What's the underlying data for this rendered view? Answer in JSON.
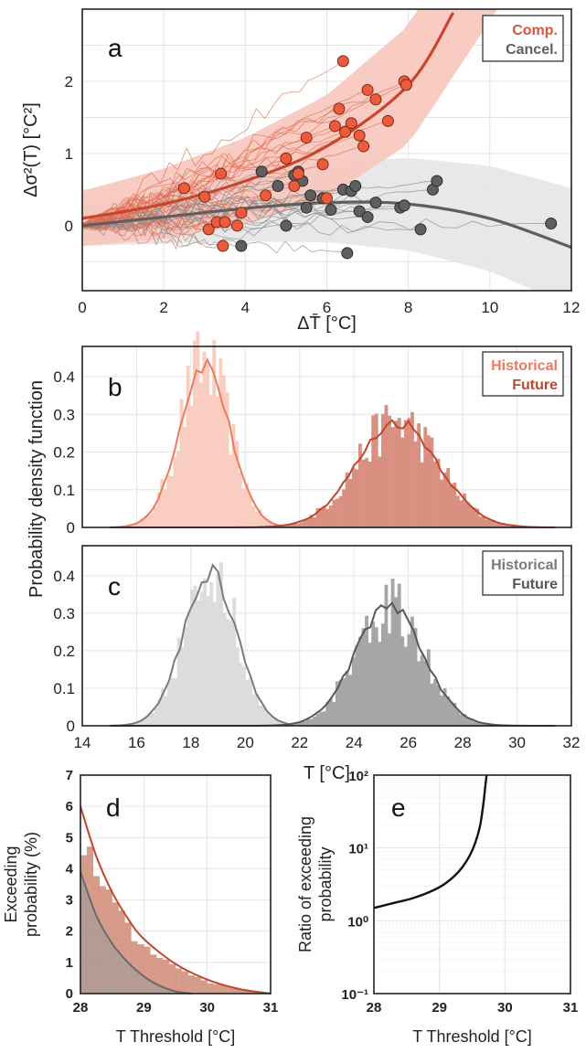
{
  "chart_data": [
    {
      "id": "a",
      "type": "scatter",
      "panel_label": "a",
      "xlabel": "ΔT̄ [°C]",
      "ylabel": "Δσ²(T) [°C²]",
      "xlim": [
        0,
        12
      ],
      "ylim": [
        -0.9,
        3.0
      ],
      "xticks": [
        "0",
        "2",
        "4",
        "6",
        "8",
        "10",
        "12"
      ],
      "yticks": [
        "0",
        "1",
        "2"
      ],
      "grid": true,
      "legend": {
        "position": "top-right",
        "entries": [
          "Comp.",
          "Cancel."
        ]
      },
      "colors": {
        "comp": "#d9553a",
        "comp_band": "#f7c6bb",
        "cancel": "#5f5f5f",
        "cancel_band": "#e6e6e6"
      },
      "series": [
        {
          "name": "Comp.",
          "fit": {
            "x": [
              0,
              2,
              4,
              6,
              8,
              9.1
            ],
            "y": [
              0.1,
              0.3,
              0.62,
              1.1,
              1.95,
              2.95
            ]
          },
          "points": [
            [
              2.5,
              0.52
            ],
            [
              3.0,
              0.4
            ],
            [
              3.1,
              -0.05
            ],
            [
              3.3,
              0.05
            ],
            [
              3.4,
              0.72
            ],
            [
              3.5,
              0.05
            ],
            [
              3.8,
              0.0
            ],
            [
              3.9,
              0.18
            ],
            [
              4.5,
              0.42
            ],
            [
              5.0,
              0.93
            ],
            [
              5.2,
              0.55
            ],
            [
              5.3,
              0.72
            ],
            [
              5.5,
              1.22
            ],
            [
              5.9,
              0.85
            ],
            [
              6.0,
              0.38
            ],
            [
              6.2,
              1.38
            ],
            [
              6.3,
              1.62
            ],
            [
              6.4,
              2.28
            ],
            [
              6.45,
              1.3
            ],
            [
              6.6,
              1.42
            ],
            [
              6.8,
              1.25
            ],
            [
              6.9,
              1.1
            ],
            [
              7.0,
              1.88
            ],
            [
              7.2,
              1.75
            ],
            [
              7.5,
              1.45
            ],
            [
              7.9,
              2.0
            ],
            [
              7.95,
              1.95
            ],
            [
              3.45,
              -0.28
            ]
          ]
        },
        {
          "name": "Cancel.",
          "fit": {
            "x": [
              0,
              2,
              4,
              6,
              8,
              10,
              12
            ],
            "y": [
              0.0,
              0.12,
              0.24,
              0.32,
              0.3,
              0.1,
              -0.3
            ]
          },
          "points": [
            [
              3.9,
              -0.28
            ],
            [
              4.4,
              0.75
            ],
            [
              4.8,
              0.55
            ],
            [
              5.0,
              0.0
            ],
            [
              5.2,
              0.7
            ],
            [
              5.3,
              0.75
            ],
            [
              5.4,
              0.62
            ],
            [
              5.5,
              0.25
            ],
            [
              5.6,
              0.42
            ],
            [
              5.9,
              0.38
            ],
            [
              6.1,
              0.22
            ],
            [
              6.4,
              0.5
            ],
            [
              6.5,
              -0.38
            ],
            [
              6.6,
              0.48
            ],
            [
              6.7,
              0.55
            ],
            [
              6.8,
              0.2
            ],
            [
              7.0,
              0.12
            ],
            [
              7.2,
              0.32
            ],
            [
              7.8,
              0.25
            ],
            [
              7.9,
              0.28
            ],
            [
              8.3,
              -0.05
            ],
            [
              8.6,
              0.5
            ],
            [
              8.7,
              0.62
            ],
            [
              11.5,
              0.03
            ]
          ]
        }
      ]
    },
    {
      "id": "b",
      "type": "bar",
      "panel_label": "b",
      "xlim": [
        14,
        32
      ],
      "ylim": [
        0,
        0.48
      ],
      "yticks": [
        "0",
        "0.1",
        "0.2",
        "0.3",
        "0.4"
      ],
      "legend": {
        "position": "top-right",
        "entries": [
          "Historical",
          "Future"
        ]
      },
      "colors": {
        "hist_bar": "#f9cdbf",
        "hist_line": "#ec7a5f",
        "fut_bar": "#d99080",
        "fut_line": "#c0462f"
      },
      "series": [
        {
          "name": "Historical",
          "mean": 18.5,
          "sd": 0.92,
          "peak": 0.435
        },
        {
          "name": "Future",
          "mean": 25.6,
          "sd": 1.5,
          "peak": 0.28
        }
      ]
    },
    {
      "id": "c",
      "type": "bar",
      "panel_label": "c",
      "xlabel": "T [°C]",
      "xlim": [
        14,
        32
      ],
      "ylim": [
        0,
        0.48
      ],
      "xticks": [
        "14",
        "16",
        "18",
        "20",
        "22",
        "24",
        "26",
        "28",
        "30",
        "32"
      ],
      "yticks": [
        "0",
        "0.1",
        "0.2",
        "0.3",
        "0.4"
      ],
      "legend": {
        "position": "top-right",
        "entries": [
          "Historical",
          "Future"
        ]
      },
      "colors": {
        "hist_bar": "#dcdcdc",
        "hist_line": "#7a7a7a",
        "fut_bar": "#a6a6a6",
        "fut_line": "#575757"
      },
      "series": [
        {
          "name": "Historical",
          "mean": 18.7,
          "sd": 0.97,
          "peak": 0.41
        },
        {
          "name": "Future",
          "mean": 25.3,
          "sd": 1.25,
          "peak": 0.32
        }
      ]
    },
    {
      "id": "d",
      "type": "area",
      "panel_label": "d",
      "xlabel": "T Threshold [°C]",
      "ylabel": [
        "Exceeding",
        "probability (%)"
      ],
      "xlim": [
        28,
        31
      ],
      "ylim": [
        0,
        7
      ],
      "xticks": [
        "28",
        "29",
        "30",
        "31"
      ],
      "yticks": [
        "0",
        "1",
        "2",
        "3",
        "4",
        "5",
        "6",
        "7"
      ],
      "colors": {
        "bar": "#cf8a74",
        "red": "#c0462f",
        "grey": "#6a6a6a",
        "grey_fill": "#a89b97"
      },
      "series": [
        {
          "name": "Comp.",
          "x": [
            28,
            28.25,
            28.5,
            28.75,
            29,
            29.5,
            30,
            30.5,
            31
          ],
          "y": [
            6.0,
            4.4,
            3.25,
            2.4,
            1.75,
            0.95,
            0.45,
            0.15,
            0.0
          ]
        },
        {
          "name": "Cancel.",
          "x": [
            28,
            28.25,
            28.5,
            28.75,
            29,
            29.25,
            29.5,
            29.75
          ],
          "y": [
            3.9,
            2.5,
            1.6,
            1.0,
            0.55,
            0.25,
            0.07,
            0.0
          ]
        }
      ]
    },
    {
      "id": "e",
      "type": "line",
      "panel_label": "e",
      "xlabel": "T Threshold [°C]",
      "ylabel": [
        "Ratio of exceeding",
        "probability"
      ],
      "xlim": [
        28,
        31
      ],
      "ylim": [
        0.1,
        100
      ],
      "yscale": "log",
      "xticks": [
        "28",
        "29",
        "30",
        "31"
      ],
      "yticks": [
        "10⁻¹",
        "10⁰",
        "10¹",
        "10²"
      ],
      "series": [
        {
          "name": "ratio",
          "x": [
            28,
            28.3,
            28.6,
            28.9,
            29.1,
            29.3,
            29.45,
            29.55,
            29.62,
            29.67,
            29.7,
            29.72
          ],
          "y": [
            1.5,
            1.75,
            2.05,
            2.6,
            3.3,
            4.8,
            7.5,
            12,
            20,
            40,
            70,
            100
          ]
        }
      ]
    }
  ]
}
